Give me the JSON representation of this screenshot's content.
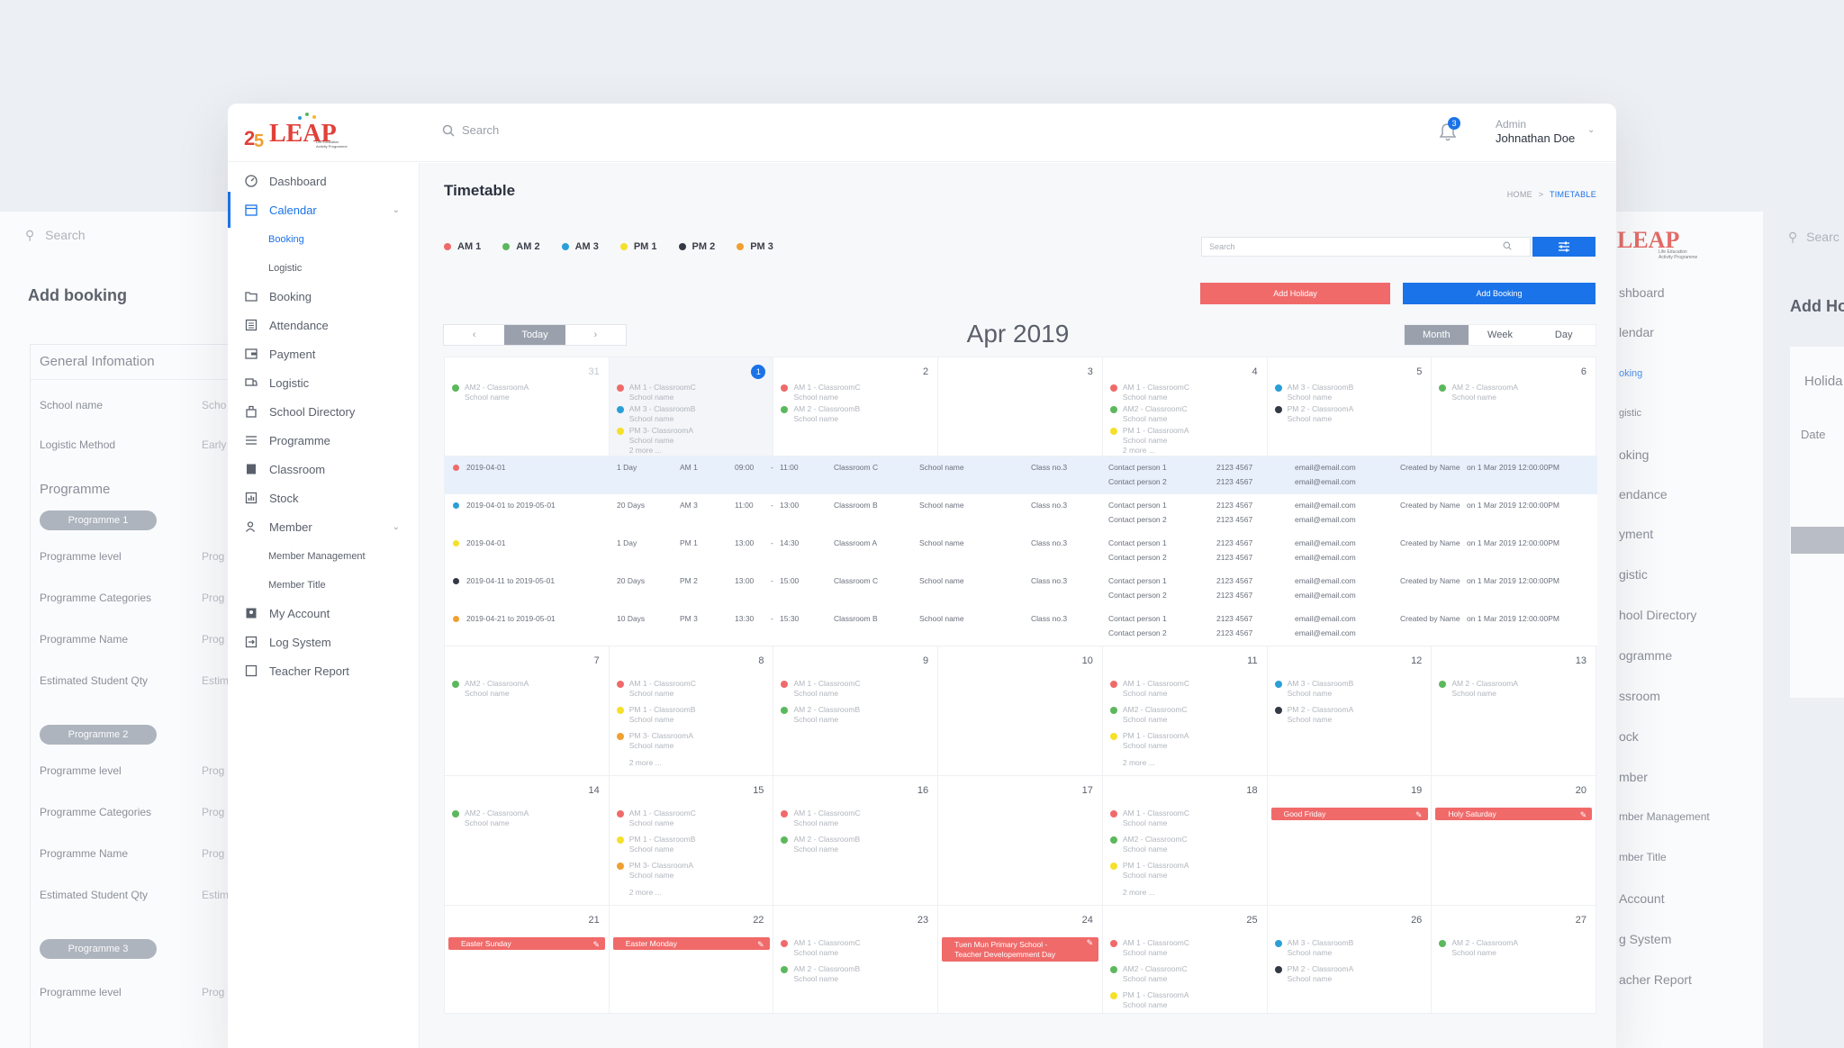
{
  "app": {
    "search_placeholder": "Search",
    "notification_count": "3",
    "user_role": "Admin",
    "user_name": "Johnathan Doe"
  },
  "sidebar": {
    "items": [
      {
        "label": "Dashboard",
        "icon": "dashboard-icon"
      },
      {
        "label": "Calendar",
        "icon": "calendar-icon"
      },
      {
        "label": "Booking",
        "icon": "folder-icon"
      },
      {
        "label": "Attendance",
        "icon": "list-icon"
      },
      {
        "label": "Payment",
        "icon": "payment-icon"
      },
      {
        "label": "Logistic",
        "icon": "truck-icon"
      },
      {
        "label": "School Directory",
        "icon": "building-icon"
      },
      {
        "label": "Programme",
        "icon": "programme-icon"
      },
      {
        "label": "Classroom",
        "icon": "book-icon"
      },
      {
        "label": "Stock",
        "icon": "chart-icon"
      },
      {
        "label": "Member",
        "icon": "member-icon"
      },
      {
        "label": "My Account",
        "icon": "account-icon"
      },
      {
        "label": "Log System",
        "icon": "log-icon"
      },
      {
        "label": "Teacher Report",
        "icon": "report-icon"
      }
    ],
    "calendar_sub": [
      "Booking",
      "Logistic"
    ],
    "member_sub": [
      "Member Management",
      "Member Title"
    ]
  },
  "page": {
    "title": "Timetable",
    "breadcrumb_home": "HOME",
    "breadcrumb_sep": ">",
    "breadcrumb_current": "TIMETABLE",
    "search_placeholder": "Search",
    "add_holiday": "Add Holiday",
    "add_booking": "Add Booking",
    "today": "Today",
    "prev": "‹",
    "next": "›",
    "month_title": "Apr 2019",
    "views": [
      "Month",
      "Week",
      "Day"
    ]
  },
  "legend": [
    {
      "label": "AM 1",
      "color": "#f06a6a"
    },
    {
      "label": "AM 2",
      "color": "#5cb85c"
    },
    {
      "label": "AM 3",
      "color": "#2a9fd6"
    },
    {
      "label": "PM 1",
      "color": "#f5e02a"
    },
    {
      "label": "PM 2",
      "color": "#333a45"
    },
    {
      "label": "PM 3",
      "color": "#f0a030"
    }
  ],
  "calendar": {
    "week1_days": [
      "31",
      "1",
      "2",
      "3",
      "4",
      "5",
      "6"
    ],
    "week2_days": [
      "7",
      "8",
      "9",
      "10",
      "11",
      "12",
      "13"
    ],
    "week3_days": [
      "14",
      "15",
      "16",
      "17",
      "18",
      "19",
      "20"
    ],
    "week4_days": [
      "21",
      "22",
      "23",
      "24",
      "25",
      "26",
      "27"
    ],
    "events": {
      "e_am2_a": "AM2 - ClassroomA",
      "e_am1_c": "AM 1 - ClassroomC",
      "e_am3_b": "AM 3 - ClassroomB",
      "e_pm3_a": "PM 3- ClassroomA",
      "e_pm3_a2": "PM 3 - ClassroomA",
      "e_am2_b": "AM 2 - ClassroomB",
      "e_am2_c": "AM2 - ClassroomC",
      "e_pm1_a": "PM 1 - ClassroomA",
      "e_pm1_b": "PM 1 - ClassroomB",
      "e_pm2_a": "PM 2 - ClassroomA",
      "e_am2_a2": "AM 2 - ClassroomA",
      "school": "School name",
      "more": "2 more ..."
    },
    "holidays": {
      "good_friday": "Good Friday",
      "holy_saturday": "Holy Saturday",
      "easter_sunday": "Easter Sunday",
      "easter_monday": "Easter Monday",
      "tuen_mun_1": "Tuen Mun Primary School -",
      "tuen_mun_2": "Teacher Developemment Day"
    },
    "details": [
      {
        "color": "#f06a6a",
        "date": "2019-04-01",
        "days": "1 Day",
        "slot": "AM 1",
        "start": "09:00",
        "end": "11:00",
        "room": "Classroom C",
        "school": "School name",
        "class": "Class no.3",
        "c1": "Contact person 1",
        "c2": "Contact person 2",
        "p1": "2123 4567",
        "p2": "2123 4567",
        "m1": "email@email.com",
        "m2": "email@email.com",
        "by": "Created by Name",
        "on": "on 1 Mar 2019 12:00:00PM"
      },
      {
        "color": "#2a9fd6",
        "date": "2019-04-01  to  2019-05-01",
        "days": "20 Days",
        "slot": "AM 3",
        "start": "11:00",
        "end": "13:00",
        "room": "Classroom B",
        "school": "School name",
        "class": "Class no.3",
        "c1": "Contact person 1",
        "c2": "Contact person 2",
        "p1": "2123 4567",
        "p2": "2123 4567",
        "m1": "email@email.com",
        "m2": "email@email.com",
        "by": "Created by Name",
        "on": "on 1 Mar 2019 12:00:00PM"
      },
      {
        "color": "#f5e02a",
        "date": "2019-04-01",
        "days": "1 Day",
        "slot": "PM 1",
        "start": "13:00",
        "end": "14:30",
        "room": "Classroom A",
        "school": "School name",
        "class": "Class no.3",
        "c1": "Contact person 1",
        "c2": "Contact person 2",
        "p1": "2123 4567",
        "p2": "2123 4567",
        "m1": "email@email.com",
        "m2": "email@email.com",
        "by": "Created by Name",
        "on": "on 1 Mar 2019 12:00:00PM"
      },
      {
        "color": "#333a45",
        "date": "2019-04-11  to  2019-05-01",
        "days": "20 Days",
        "slot": "PM 2",
        "start": "13:00",
        "end": "15:00",
        "room": "Classroom C",
        "school": "School name",
        "class": "Class no.3",
        "c1": "Contact person 1",
        "c2": "Contact person 2",
        "p1": "2123 4567",
        "p2": "2123 4567",
        "m1": "email@email.com",
        "m2": "email@email.com",
        "by": "Created by Name",
        "on": "on 1 Mar 2019 12:00:00PM"
      },
      {
        "color": "#f0a030",
        "date": "2019-04-21  to  2019-05-01",
        "days": "10 Days",
        "slot": "PM 3",
        "start": "13:30",
        "end": "15:30",
        "room": "Classroom B",
        "school": "School name",
        "class": "Class no.3",
        "c1": "Contact person 1",
        "c2": "Contact person 2",
        "p1": "2123 4567",
        "p2": "2123 4567",
        "m1": "email@email.com",
        "m2": "email@email.com",
        "by": "Created by Name",
        "on": "on 1 Mar 2019 12:00:00PM"
      }
    ]
  },
  "bg_left": {
    "search": "Search",
    "title": "Add booking",
    "general": "General Infomation",
    "school_name": "School name",
    "school_name_val": "Scho",
    "logistic": "Logistic Method",
    "logistic_val": "Early",
    "programme": "Programme",
    "programme1": "Programme 1",
    "programme2": "Programme 2",
    "programme3": "Programme 3",
    "prog_level": "Programme level",
    "prog_cat": "Programme Categories",
    "prog_name": "Programme Name",
    "est_qty": "Estimated Student Qty",
    "prog_val": "Prog",
    "est_val": "Estim"
  },
  "bg_right": {
    "search": "Searc",
    "title": "Add Ho",
    "holiday": "Holida",
    "date": "Date",
    "items": [
      "shboard",
      "lendar",
      "oking",
      "gistic",
      "oking",
      "endance",
      "yment",
      "gistic",
      "hool Directory",
      "ogramme",
      "ssroom",
      "ock",
      "mber",
      "mber Management",
      "mber Title",
      "Account",
      "g System",
      "acher Report"
    ]
  }
}
